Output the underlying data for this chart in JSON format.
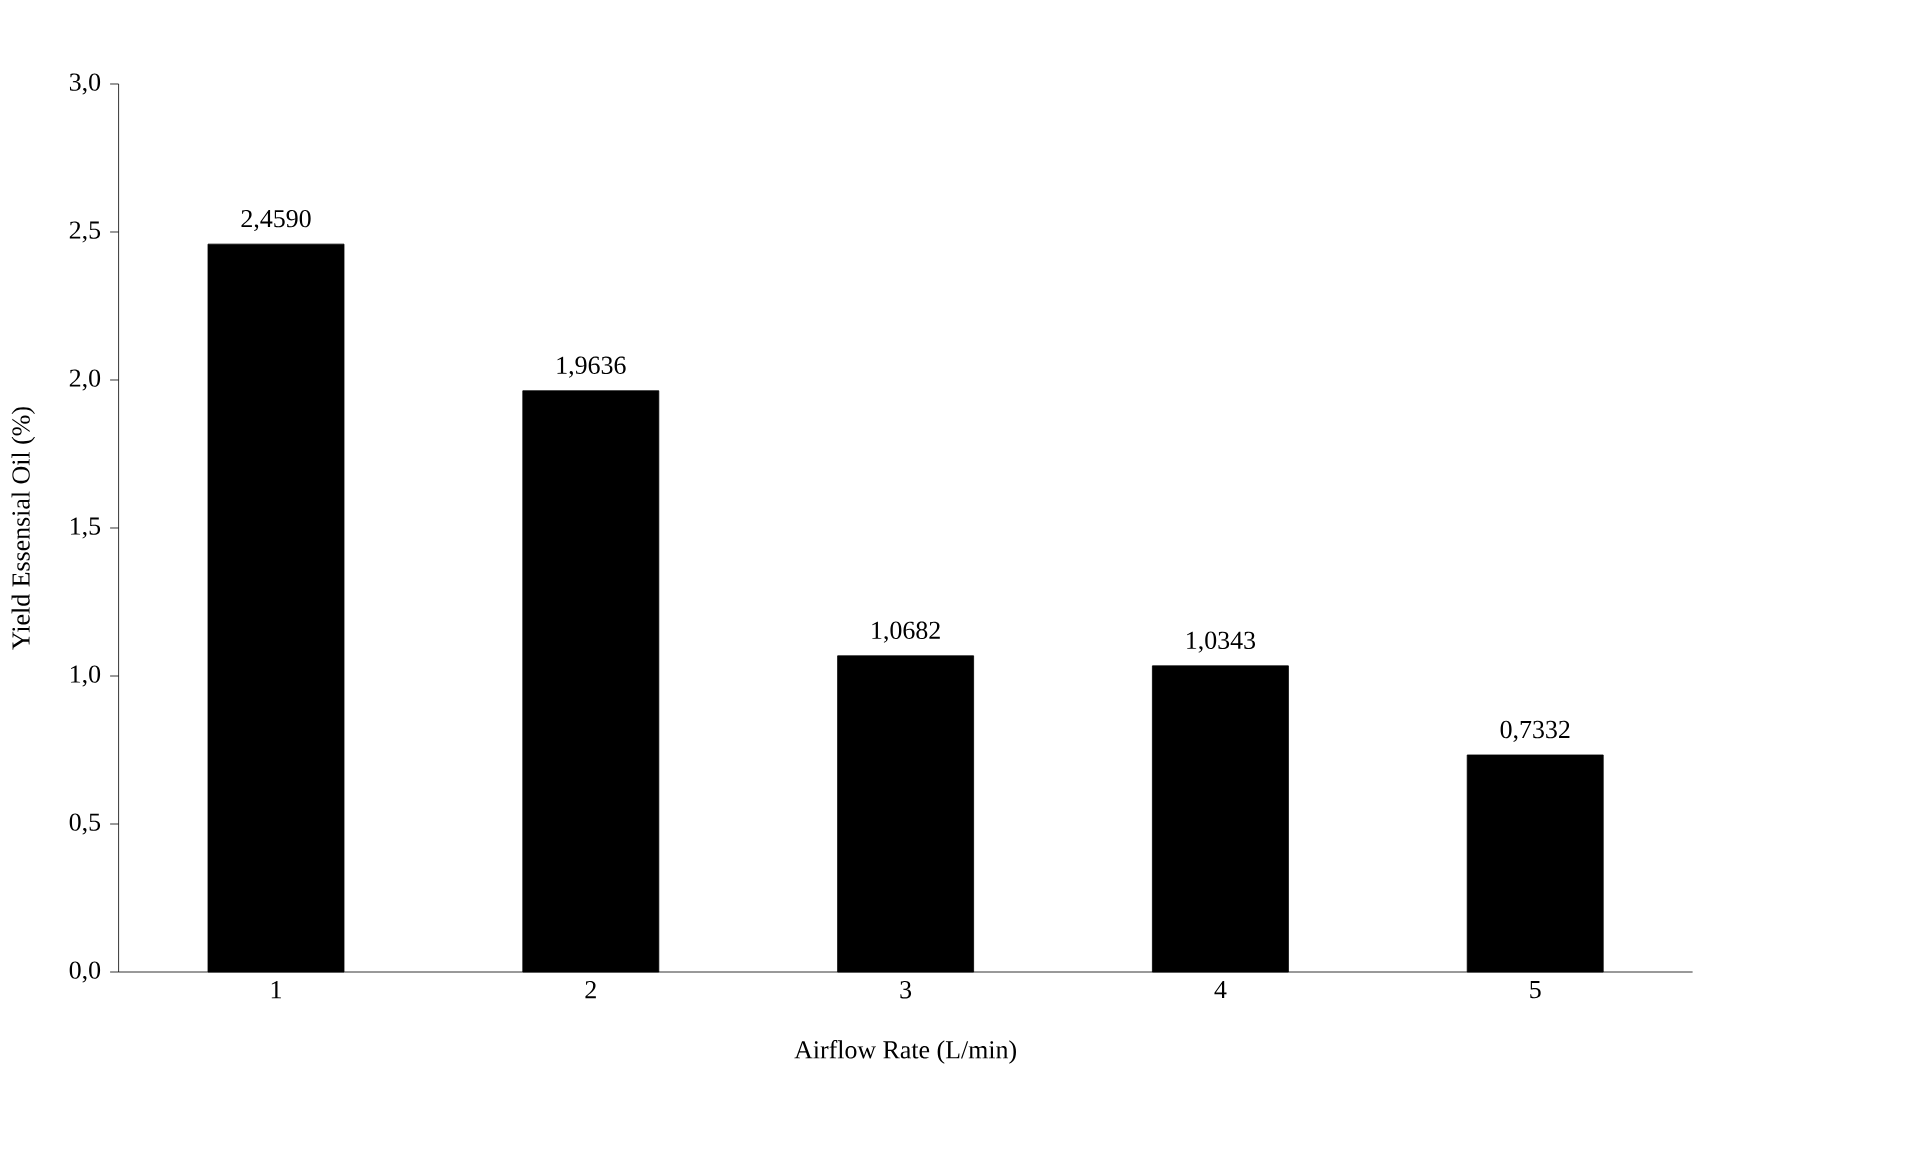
{
  "chart_data": {
    "type": "bar",
    "xlabel": "Airflow Rate (L/min)",
    "ylabel": "Yield Essensial Oil  (%)",
    "categories": [
      "1",
      "2",
      "3",
      "4",
      "5"
    ],
    "values": [
      2.459,
      1.9636,
      1.0682,
      1.0343,
      0.7332
    ],
    "value_labels": [
      "2,4590",
      "1,9636",
      "1,0682",
      "1,0343",
      "0,7332"
    ],
    "color": "#000000",
    "ylim": [
      0,
      3
    ],
    "yticks": [
      {
        "value": 0,
        "label": "0,0"
      },
      {
        "value": 0.5,
        "label": "0,5"
      },
      {
        "value": 1,
        "label": "1,0"
      },
      {
        "value": 1.5,
        "label": "1,5"
      },
      {
        "value": 2,
        "label": "2,0"
      },
      {
        "value": 2.5,
        "label": "2,5"
      },
      {
        "value": 3,
        "label": "3,0"
      }
    ]
  }
}
